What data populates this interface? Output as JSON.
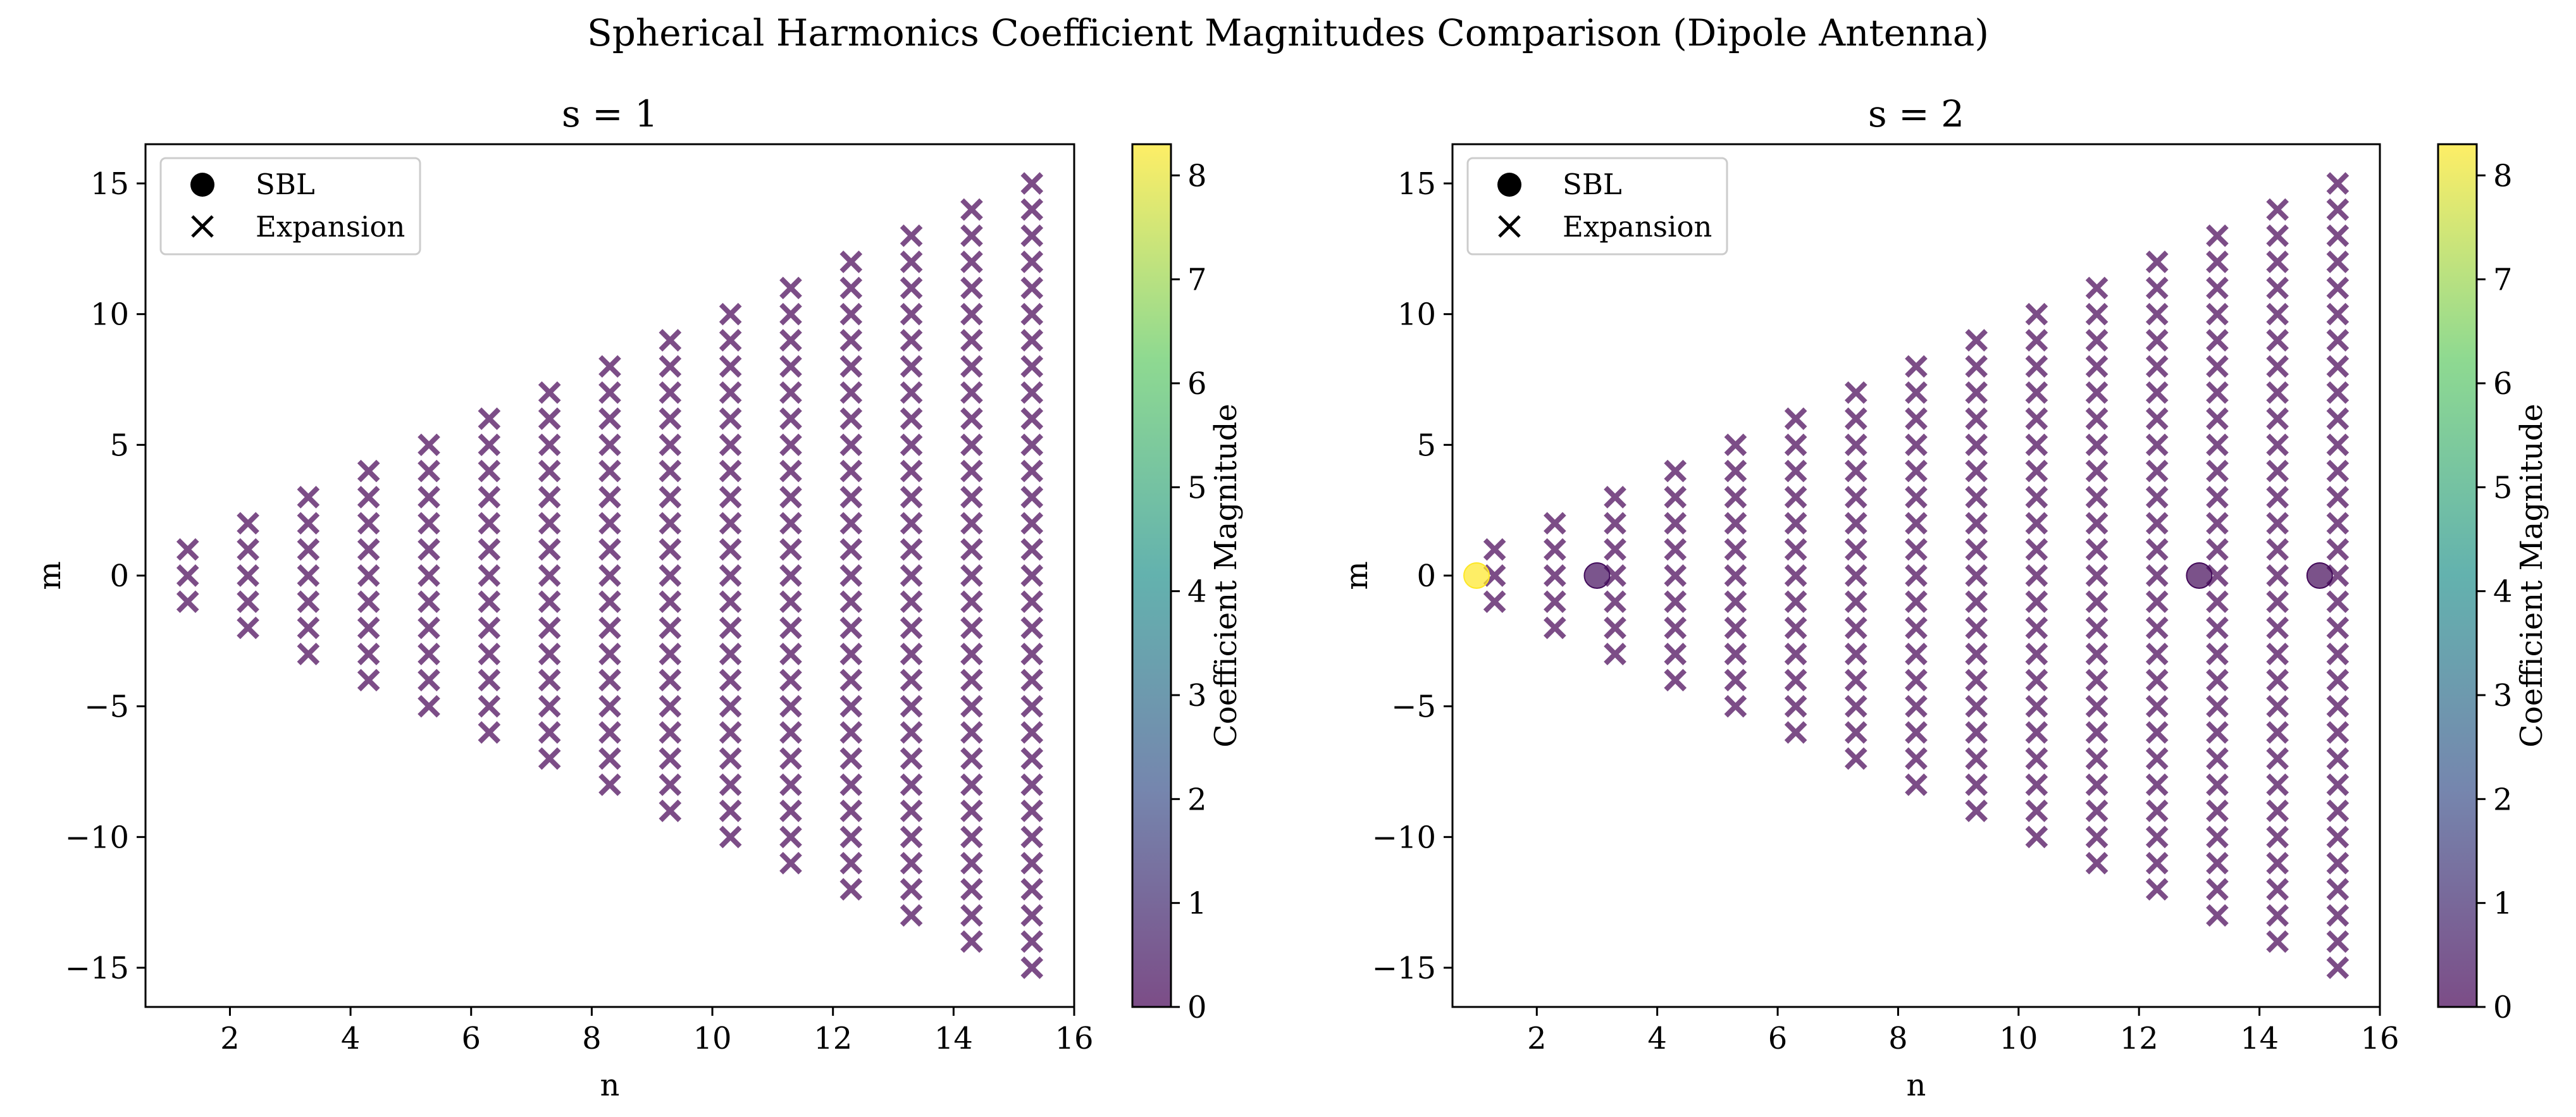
{
  "figure": {
    "suptitle": "Spherical Harmonics Coefficient Magnitudes Comparison (Dipole Antenna)"
  },
  "colormap": {
    "name": "viridis",
    "stops": [
      "#440154",
      "#3b528b",
      "#21918c",
      "#5ec962",
      "#fde725"
    ],
    "alpha": 0.7
  },
  "chart_data": [
    {
      "type": "scatter",
      "title": "s = 1",
      "xlabel": "n",
      "ylabel": "m",
      "xlim": [
        0.6,
        16.0
      ],
      "ylim": [
        -16.5,
        16.5
      ],
      "xticks": [
        2,
        4,
        6,
        8,
        10,
        12,
        14,
        16
      ],
      "yticks": [
        -15,
        -10,
        -5,
        0,
        5,
        10,
        15
      ],
      "colorbar": {
        "label": "Coefficient Magnitude",
        "range": [
          0,
          8.3
        ],
        "ticks": [
          0,
          1,
          2,
          3,
          4,
          5,
          6,
          7,
          8
        ]
      },
      "legend": {
        "placement": "upper-left",
        "entries": [
          "SBL",
          "Expansion"
        ]
      },
      "series": [
        {
          "name": "SBL",
          "marker": "circle",
          "points": []
        },
        {
          "name": "Expansion",
          "marker": "x",
          "grid": "for n = 1..15 and m = -n..n, plotted at x = n + 0.3",
          "n_max": 15,
          "x_offset": 0.3,
          "magnitude": 0.0
        }
      ]
    },
    {
      "type": "scatter",
      "title": "s = 2",
      "xlabel": "n",
      "ylabel": "m",
      "xlim": [
        0.6,
        16.0
      ],
      "ylim": [
        -16.5,
        16.5
      ],
      "xticks": [
        2,
        4,
        6,
        8,
        10,
        12,
        14,
        16
      ],
      "yticks": [
        -15,
        -10,
        -5,
        0,
        5,
        10,
        15
      ],
      "colorbar": {
        "label": "Coefficient Magnitude",
        "range": [
          0,
          8.3
        ],
        "ticks": [
          0,
          1,
          2,
          3,
          4,
          5,
          6,
          7,
          8
        ]
      },
      "legend": {
        "placement": "upper-left",
        "entries": [
          "SBL",
          "Expansion"
        ]
      },
      "series": [
        {
          "name": "SBL",
          "marker": "circle",
          "points": [
            {
              "n": 1,
              "m": 0,
              "magnitude": 8.3
            },
            {
              "n": 3,
              "m": 0,
              "magnitude": 0.3
            },
            {
              "n": 13,
              "m": 0,
              "magnitude": 0.2
            },
            {
              "n": 15,
              "m": 0,
              "magnitude": 0.2
            }
          ]
        },
        {
          "name": "Expansion",
          "marker": "x",
          "grid": "for n = 1..15 and m = -n..n, plotted at x = n + 0.3",
          "n_max": 15,
          "x_offset": 0.3,
          "magnitude": 0.0
        }
      ]
    }
  ]
}
